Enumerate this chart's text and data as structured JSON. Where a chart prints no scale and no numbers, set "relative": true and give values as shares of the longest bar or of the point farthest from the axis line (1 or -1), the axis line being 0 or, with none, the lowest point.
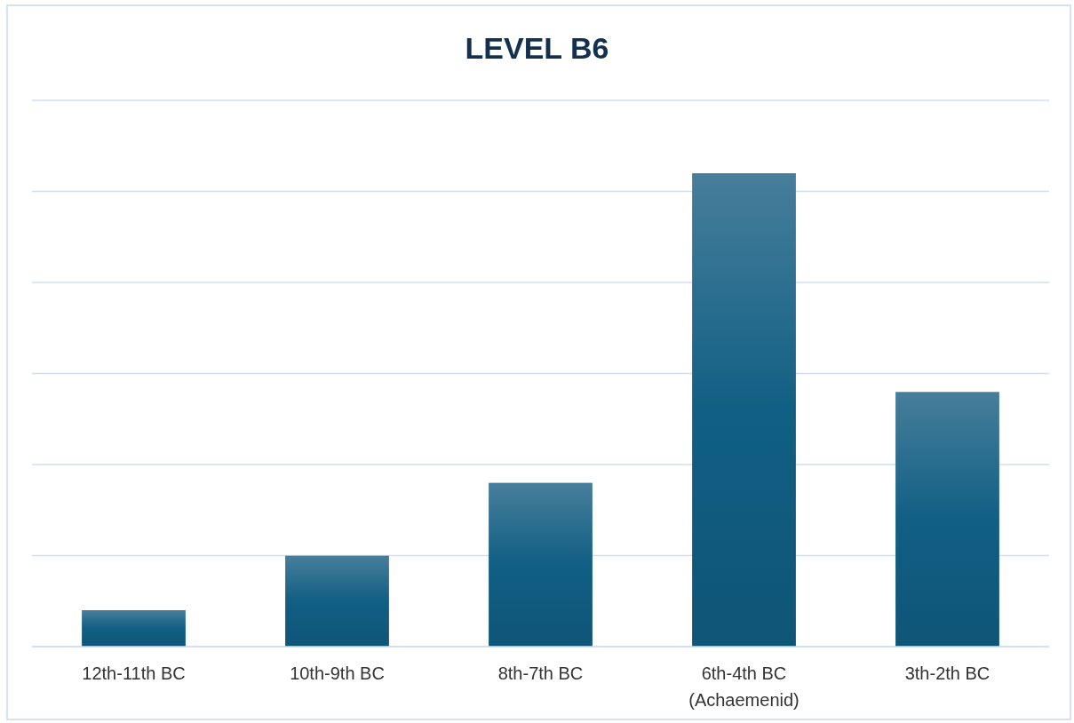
{
  "chart_data": {
    "type": "bar",
    "title": "LEVEL B6",
    "categories": [
      "12th-11th BC",
      "10th-9th BC",
      "8th-7th BC",
      "6th-4th BC\n(Achaemenid)",
      "3th-2th BC"
    ],
    "values": [
      0.077,
      0.192,
      0.346,
      1,
      0.538
    ],
    "color": "#115f84",
    "relative": true,
    "grid": true
  }
}
